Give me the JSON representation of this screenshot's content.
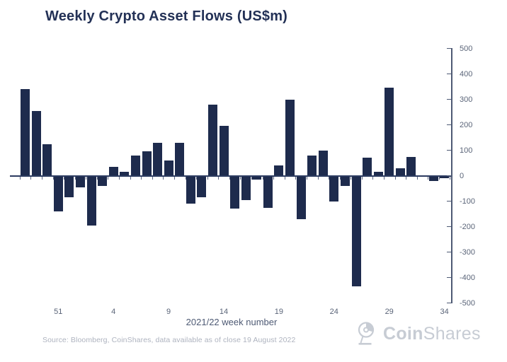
{
  "title": "Weekly Crypto Asset Flows (US$m)",
  "source_note": "Source: Bloomberg, CoinShares, data available as of close 19 August 2022",
  "brand": {
    "bold": "Coin",
    "light": "Shares",
    "color": "#c7ccd4"
  },
  "chart_data": {
    "type": "bar",
    "title": "Weekly Crypto Asset Flows (US$m)",
    "xlabel": "2021/22 week number",
    "ylabel": "",
    "ylim": [
      -500,
      500
    ],
    "y_ticks": [
      500,
      400,
      300,
      200,
      100,
      0,
      -100,
      -200,
      -300,
      -400,
      -500
    ],
    "y_tick_labels": [
      "500",
      "400",
      "300",
      "200",
      "100",
      "0",
      "-100",
      "-200",
      "-300",
      "-400",
      "-500"
    ],
    "x_tick_weeks": [
      51,
      4,
      9,
      14,
      19,
      24,
      29,
      34
    ],
    "x_tick_labels": [
      "51",
      "4",
      "9",
      "14",
      "19",
      "24",
      "29",
      "34"
    ],
    "weeks": [
      48,
      49,
      50,
      51,
      52,
      1,
      2,
      3,
      4,
      5,
      6,
      7,
      8,
      9,
      10,
      11,
      12,
      13,
      14,
      15,
      16,
      17,
      18,
      19,
      20,
      21,
      22,
      23,
      24,
      25,
      26,
      27,
      28,
      29,
      30,
      31,
      32,
      33,
      34
    ],
    "values": [
      340,
      255,
      125,
      -140,
      -85,
      -45,
      -195,
      -40,
      35,
      15,
      80,
      95,
      130,
      60,
      130,
      -110,
      -85,
      280,
      195,
      -130,
      -95,
      -15,
      -125,
      40,
      300,
      -170,
      80,
      100,
      -100,
      -40,
      -435,
      70,
      15,
      345,
      30,
      75,
      -5,
      -20,
      -10
    ],
    "bar_color": "#1e2b4d",
    "grid": false,
    "legend": null,
    "y_axis_side": "right"
  }
}
